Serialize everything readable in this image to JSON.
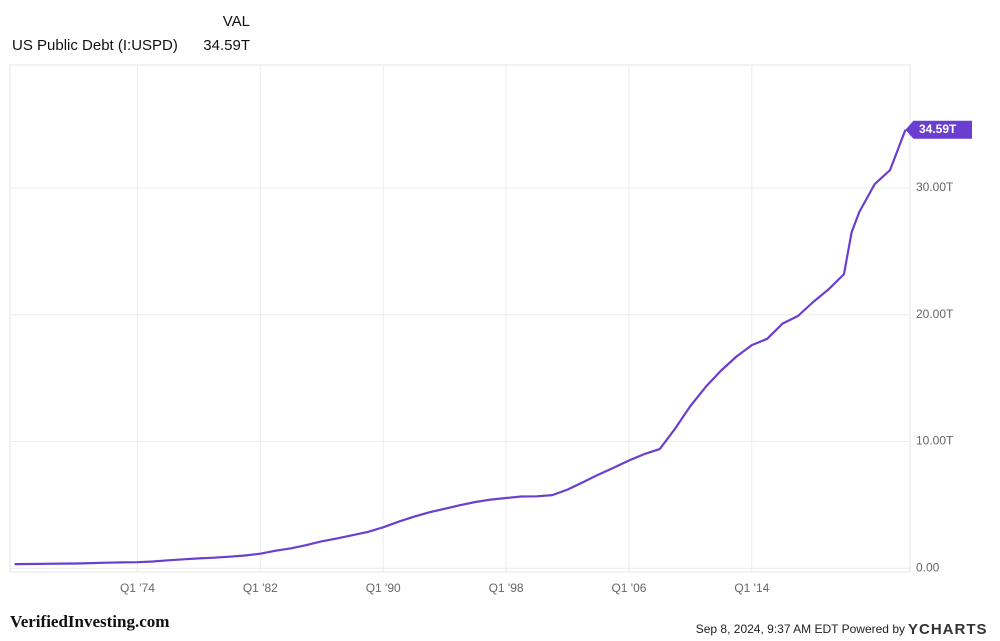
{
  "chart_data": {
    "type": "line",
    "legend": {
      "header": "VAL",
      "name": "US Public Debt (I:USPD)",
      "value": "34.59T"
    },
    "x": [
      1966,
      1967,
      1968,
      1969,
      1970,
      1971,
      1972,
      1973,
      1974,
      1975,
      1976,
      1977,
      1978,
      1979,
      1980,
      1981,
      1982,
      1983,
      1984,
      1985,
      1986,
      1987,
      1988,
      1989,
      1990,
      1991,
      1992,
      1993,
      1994,
      1995,
      1996,
      1997,
      1998,
      1999,
      2000,
      2001,
      2002,
      2003,
      2004,
      2005,
      2006,
      2007,
      2008,
      2009,
      2010,
      2011,
      2012,
      2013,
      2014,
      2015,
      2016,
      2017,
      2018,
      2019,
      2020,
      2020.5,
      2021,
      2022,
      2023,
      2024
    ],
    "series": [
      {
        "name": "US Public Debt (I:USPD)",
        "color": "#6a3fcf",
        "values": [
          0.32,
          0.33,
          0.35,
          0.36,
          0.37,
          0.4,
          0.43,
          0.46,
          0.47,
          0.53,
          0.62,
          0.7,
          0.77,
          0.83,
          0.91,
          1.0,
          1.14,
          1.38,
          1.57,
          1.82,
          2.12,
          2.35,
          2.6,
          2.86,
          3.23,
          3.67,
          4.06,
          4.41,
          4.69,
          4.97,
          5.22,
          5.41,
          5.54,
          5.66,
          5.67,
          5.77,
          6.2,
          6.78,
          7.38,
          7.93,
          8.5,
          9.0,
          9.4,
          11.0,
          12.8,
          14.3,
          15.6,
          16.7,
          17.6,
          18.1,
          19.3,
          19.9,
          21.0,
          22.0,
          23.2,
          26.5,
          28.1,
          30.3,
          31.4,
          34.59
        ]
      }
    ],
    "xlim": [
      1965.7,
      2024.3
    ],
    "xticks": [
      {
        "value": 1974,
        "label": "Q1 '74"
      },
      {
        "value": 1982,
        "label": "Q1 '82"
      },
      {
        "value": 1990,
        "label": "Q1 '90"
      },
      {
        "value": 1998,
        "label": "Q1 '98"
      },
      {
        "value": 2006,
        "label": "Q1 '06"
      },
      {
        "value": 2014,
        "label": "Q1 '14"
      }
    ],
    "ylim": [
      -0.3,
      39.7
    ],
    "yticks": [
      {
        "value": 0,
        "label": "0.00"
      },
      {
        "value": 10,
        "label": "10.00T"
      },
      {
        "value": 20,
        "label": "20.00T"
      },
      {
        "value": 30,
        "label": "30.00T"
      }
    ],
    "grid": true
  },
  "footer": {
    "brand": "VerifiedInvesting.com",
    "timestamp": "Sep 8, 2024, 9:37 AM EDT Powered by",
    "logo": "YCHARTS"
  }
}
